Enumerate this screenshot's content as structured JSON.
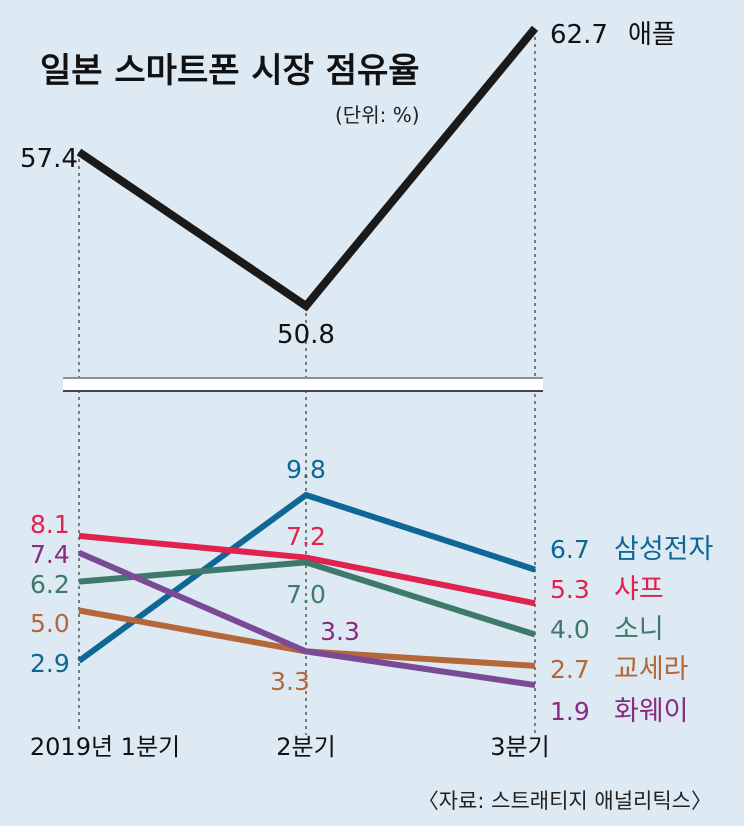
{
  "chart_data": {
    "type": "line",
    "title": "일본 스마트폰 시장 점유율",
    "unit": "(단위: %)",
    "source": "〈자료: 스트래티지 애널리틱스〉",
    "categories": [
      "2019년 1분기",
      "2분기",
      "3분기"
    ],
    "top_panel": {
      "series": [
        {
          "name": "애플",
          "values": [
            57.4,
            50.8,
            62.7
          ],
          "color": "#1a1a1a"
        }
      ]
    },
    "bottom_panel": {
      "series": [
        {
          "name": "삼성전자",
          "values": [
            2.9,
            9.8,
            6.7
          ],
          "color": "#0f6796"
        },
        {
          "name": "샤프",
          "values": [
            8.1,
            7.2,
            5.3
          ],
          "color": "#e0224f"
        },
        {
          "name": "소니",
          "values": [
            6.2,
            7.0,
            4.0
          ],
          "color": "#3e7a6b"
        },
        {
          "name": "교세라",
          "values": [
            5.0,
            3.3,
            2.7
          ],
          "color": "#b4683a"
        },
        {
          "name": "화웨이",
          "values": [
            7.4,
            3.3,
            1.9
          ],
          "color": "#7a4a96",
          "label_color": "#8a2a80"
        }
      ]
    },
    "value_labels": {
      "0": [
        "8.1",
        "7.4",
        "6.2",
        "5.0",
        "2.9"
      ],
      "1": [
        "9.8",
        "7.2",
        "7.0",
        "3.3",
        "3.3"
      ],
      "2": [
        "6.7",
        "5.3",
        "4.0",
        "2.7",
        "1.9"
      ]
    }
  }
}
